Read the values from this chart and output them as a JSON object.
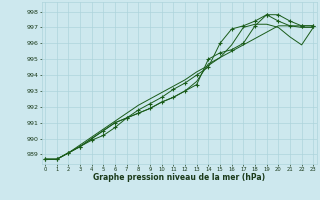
{
  "title": "Graphe pression niveau de la mer (hPa)",
  "background_color": "#cde8ee",
  "grid_color": "#aed4dc",
  "line_color": "#1a5c1a",
  "x_ticks": [
    0,
    1,
    2,
    3,
    4,
    5,
    6,
    7,
    8,
    9,
    10,
    11,
    12,
    13,
    14,
    15,
    16,
    17,
    18,
    19,
    20,
    21,
    22,
    23
  ],
  "ylim": [
    988.4,
    998.6
  ],
  "yticks": [
    989,
    990,
    991,
    992,
    993,
    994,
    995,
    996,
    997,
    998
  ],
  "xlim": [
    -0.3,
    23.3
  ],
  "lines": [
    [
      988.7,
      988.7,
      989.1,
      989.5,
      989.9,
      990.2,
      990.7,
      991.3,
      991.8,
      992.2,
      992.6,
      993.1,
      993.5,
      994.0,
      994.5,
      996.0,
      996.9,
      997.1,
      997.4,
      997.8,
      997.8,
      997.4,
      997.1,
      997.1
    ],
    [
      988.7,
      988.7,
      989.1,
      989.5,
      990.0,
      990.5,
      991.0,
      991.3,
      991.6,
      991.9,
      992.3,
      992.6,
      993.0,
      993.4,
      995.0,
      995.4,
      995.6,
      996.0,
      997.1,
      997.8,
      997.4,
      997.1,
      997.1,
      997.1
    ],
    [
      988.7,
      988.7,
      989.1,
      989.5,
      990.0,
      990.5,
      991.0,
      991.3,
      991.6,
      991.9,
      992.3,
      992.6,
      993.0,
      993.6,
      994.7,
      995.1,
      995.9,
      997.0,
      997.2,
      997.2,
      997.0,
      996.4,
      995.9,
      997.0
    ],
    [
      988.7,
      988.7,
      989.1,
      989.6,
      990.1,
      990.6,
      991.1,
      991.6,
      992.1,
      992.5,
      992.9,
      993.3,
      993.7,
      994.2,
      994.6,
      995.1,
      995.5,
      995.9,
      996.3,
      996.7,
      997.1,
      997.1,
      997.0,
      997.0
    ]
  ],
  "has_markers": [
    true,
    true,
    false,
    false
  ],
  "marker": "+"
}
